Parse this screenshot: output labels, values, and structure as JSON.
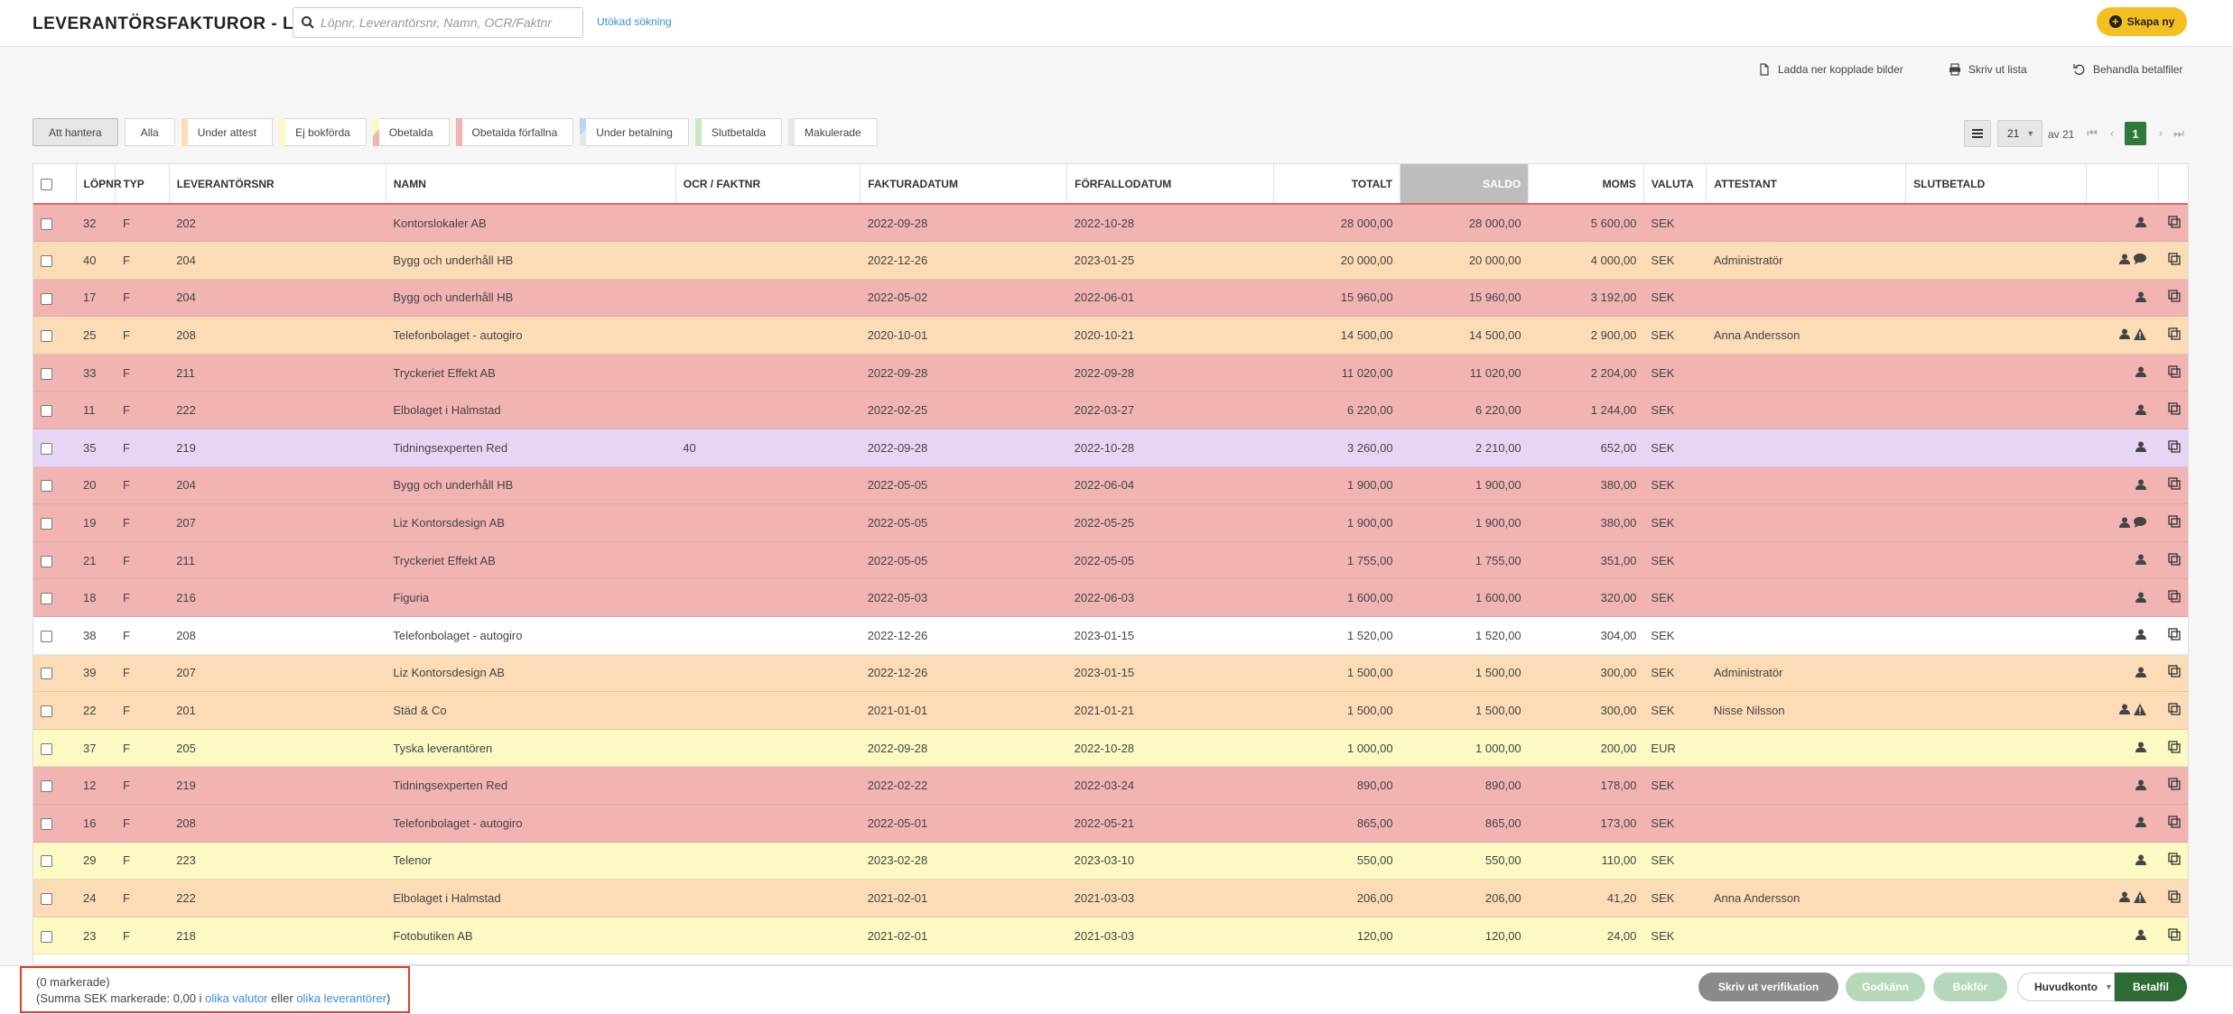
{
  "header": {
    "title": "LEVERANTÖRSFAKTUROR - LISTA",
    "search_placeholder": "Löpnr, Leverantörsnr, Namn, OCR/Faktnr",
    "advanced_search": "Utökad sökning",
    "create_label": "Skapa ny"
  },
  "actions": {
    "download": "Ladda ner kopplade bilder",
    "print": "Skriv ut lista",
    "process": "Behandla betalfiler"
  },
  "filters": [
    {
      "label": "Att hantera",
      "color": "",
      "active": true
    },
    {
      "label": "Alla",
      "color": ""
    },
    {
      "label": "Under attest",
      "color": "#fbdcb6"
    },
    {
      "label": "Ej bokförda",
      "color": "#fcf9c2"
    },
    {
      "label": "Obetalda",
      "color": "#f2b3b3"
    },
    {
      "label": "Obetalda förfallna",
      "color": "#f2b3b3"
    },
    {
      "label": "Under betalning",
      "color": "#b8d6f5"
    },
    {
      "label": "Slutbetalda",
      "color": "#cde8c3"
    },
    {
      "label": "Makulerade",
      "color": "#e6e6e6"
    }
  ],
  "pager": {
    "page_size": "21",
    "of_label": "av 21",
    "current_page": "1"
  },
  "columns": {
    "lopnr": "LÖPNR",
    "typ": "TYP",
    "levnr": "LEVERANTÖRSNR",
    "namn": "NAMN",
    "ocr": "OCR / FAKTNR",
    "fakturadatum": "FAKTURADATUM",
    "forfallodatum": "FÖRFALLODATUM",
    "totalt": "TOTALT",
    "saldo": "SALDO",
    "moms": "MOMS",
    "valuta": "VALUTA",
    "attestant": "ATTESTANT",
    "slutbetald": "SLUTBETALD"
  },
  "rows": [
    {
      "lopnr": "32",
      "typ": "F",
      "levnr": "202",
      "namn": "Kontorslokaler AB",
      "ocr": "",
      "fdatum": "2022-09-28",
      "ffdatum": "2022-10-28",
      "totalt": "28 000,00",
      "saldo": "28 000,00",
      "moms": "5 600,00",
      "valuta": "SEK",
      "attestant": "",
      "color": "red",
      "icons": [
        "user-icon"
      ]
    },
    {
      "lopnr": "40",
      "typ": "F",
      "levnr": "204",
      "namn": "Bygg och underhåll HB",
      "ocr": "",
      "fdatum": "2022-12-26",
      "ffdatum": "2023-01-25",
      "totalt": "20 000,00",
      "saldo": "20 000,00",
      "moms": "4 000,00",
      "valuta": "SEK",
      "attestant": "Administratör",
      "color": "orange",
      "icons": [
        "user-icon",
        "comment-icon"
      ]
    },
    {
      "lopnr": "17",
      "typ": "F",
      "levnr": "204",
      "namn": "Bygg och underhåll HB",
      "ocr": "",
      "fdatum": "2022-05-02",
      "ffdatum": "2022-06-01",
      "totalt": "15 960,00",
      "saldo": "15 960,00",
      "moms": "3 192,00",
      "valuta": "SEK",
      "attestant": "",
      "color": "red",
      "icons": [
        "user-icon"
      ]
    },
    {
      "lopnr": "25",
      "typ": "F",
      "levnr": "208",
      "namn": "Telefonbolaget - autogiro",
      "ocr": "",
      "fdatum": "2020-10-01",
      "ffdatum": "2020-10-21",
      "totalt": "14 500,00",
      "saldo": "14 500,00",
      "moms": "2 900,00",
      "valuta": "SEK",
      "attestant": "Anna Andersson",
      "color": "orange",
      "icons": [
        "user-icon",
        "warning-icon"
      ]
    },
    {
      "lopnr": "33",
      "typ": "F",
      "levnr": "211",
      "namn": "Tryckeriet Effekt AB",
      "ocr": "",
      "fdatum": "2022-09-28",
      "ffdatum": "2022-09-28",
      "totalt": "11 020,00",
      "saldo": "11 020,00",
      "moms": "2 204,00",
      "valuta": "SEK",
      "attestant": "",
      "color": "red",
      "icons": [
        "user-icon"
      ]
    },
    {
      "lopnr": "11",
      "typ": "F",
      "levnr": "222",
      "namn": "Elbolaget i Halmstad",
      "ocr": "",
      "fdatum": "2022-02-25",
      "ffdatum": "2022-03-27",
      "totalt": "6 220,00",
      "saldo": "6 220,00",
      "moms": "1 244,00",
      "valuta": "SEK",
      "attestant": "",
      "color": "red",
      "icons": [
        "user-icon"
      ]
    },
    {
      "lopnr": "35",
      "typ": "F",
      "levnr": "219",
      "namn": "Tidningsexperten Red",
      "ocr": "40",
      "fdatum": "2022-09-28",
      "ffdatum": "2022-10-28",
      "totalt": "3 260,00",
      "saldo": "2 210,00",
      "moms": "652,00",
      "valuta": "SEK",
      "attestant": "",
      "color": "lilac",
      "icons": [
        "user-icon"
      ]
    },
    {
      "lopnr": "20",
      "typ": "F",
      "levnr": "204",
      "namn": "Bygg och underhåll HB",
      "ocr": "",
      "fdatum": "2022-05-05",
      "ffdatum": "2022-06-04",
      "totalt": "1 900,00",
      "saldo": "1 900,00",
      "moms": "380,00",
      "valuta": "SEK",
      "attestant": "",
      "color": "red",
      "icons": [
        "user-icon"
      ]
    },
    {
      "lopnr": "19",
      "typ": "F",
      "levnr": "207",
      "namn": "Liz Kontorsdesign AB",
      "ocr": "",
      "fdatum": "2022-05-05",
      "ffdatum": "2022-05-25",
      "totalt": "1 900,00",
      "saldo": "1 900,00",
      "moms": "380,00",
      "valuta": "SEK",
      "attestant": "",
      "color": "red",
      "icons": [
        "user-icon",
        "comment-icon"
      ]
    },
    {
      "lopnr": "21",
      "typ": "F",
      "levnr": "211",
      "namn": "Tryckeriet Effekt AB",
      "ocr": "",
      "fdatum": "2022-05-05",
      "ffdatum": "2022-05-05",
      "totalt": "1 755,00",
      "saldo": "1 755,00",
      "moms": "351,00",
      "valuta": "SEK",
      "attestant": "",
      "color": "red",
      "icons": [
        "user-icon"
      ]
    },
    {
      "lopnr": "18",
      "typ": "F",
      "levnr": "216",
      "namn": "Figuria",
      "ocr": "",
      "fdatum": "2022-05-03",
      "ffdatum": "2022-06-03",
      "totalt": "1 600,00",
      "saldo": "1 600,00",
      "moms": "320,00",
      "valuta": "SEK",
      "attestant": "",
      "color": "red",
      "icons": [
        "user-icon"
      ]
    },
    {
      "lopnr": "38",
      "typ": "F",
      "levnr": "208",
      "namn": "Telefonbolaget - autogiro",
      "ocr": "",
      "fdatum": "2022-12-26",
      "ffdatum": "2023-01-15",
      "totalt": "1 520,00",
      "saldo": "1 520,00",
      "moms": "304,00",
      "valuta": "SEK",
      "attestant": "",
      "color": "white",
      "icons": [
        "user-icon"
      ]
    },
    {
      "lopnr": "39",
      "typ": "F",
      "levnr": "207",
      "namn": "Liz Kontorsdesign AB",
      "ocr": "",
      "fdatum": "2022-12-26",
      "ffdatum": "2023-01-15",
      "totalt": "1 500,00",
      "saldo": "1 500,00",
      "moms": "300,00",
      "valuta": "SEK",
      "attestant": "Administratör",
      "color": "orange",
      "icons": [
        "user-icon"
      ]
    },
    {
      "lopnr": "22",
      "typ": "F",
      "levnr": "201",
      "namn": "Städ & Co",
      "ocr": "",
      "fdatum": "2021-01-01",
      "ffdatum": "2021-01-21",
      "totalt": "1 500,00",
      "saldo": "1 500,00",
      "moms": "300,00",
      "valuta": "SEK",
      "attestant": "Nisse Nilsson",
      "color": "orange",
      "icons": [
        "user-icon",
        "warning-icon"
      ]
    },
    {
      "lopnr": "37",
      "typ": "F",
      "levnr": "205",
      "namn": "Tyska leverantören",
      "ocr": "",
      "fdatum": "2022-09-28",
      "ffdatum": "2022-10-28",
      "totalt": "1 000,00",
      "saldo": "1 000,00",
      "moms": "200,00",
      "valuta": "EUR",
      "attestant": "",
      "color": "yellow",
      "icons": [
        "user-icon"
      ]
    },
    {
      "lopnr": "12",
      "typ": "F",
      "levnr": "219",
      "namn": "Tidningsexperten Red",
      "ocr": "",
      "fdatum": "2022-02-22",
      "ffdatum": "2022-03-24",
      "totalt": "890,00",
      "saldo": "890,00",
      "moms": "178,00",
      "valuta": "SEK",
      "attestant": "",
      "color": "red",
      "icons": [
        "user-icon"
      ]
    },
    {
      "lopnr": "16",
      "typ": "F",
      "levnr": "208",
      "namn": "Telefonbolaget - autogiro",
      "ocr": "",
      "fdatum": "2022-05-01",
      "ffdatum": "2022-05-21",
      "totalt": "865,00",
      "saldo": "865,00",
      "moms": "173,00",
      "valuta": "SEK",
      "attestant": "",
      "color": "red",
      "icons": [
        "user-icon"
      ]
    },
    {
      "lopnr": "29",
      "typ": "F",
      "levnr": "223",
      "namn": "Telenor",
      "ocr": "",
      "fdatum": "2023-02-28",
      "ffdatum": "2023-03-10",
      "totalt": "550,00",
      "saldo": "550,00",
      "moms": "110,00",
      "valuta": "SEK",
      "attestant": "",
      "color": "yellow",
      "icons": [
        "user-icon"
      ]
    },
    {
      "lopnr": "24",
      "typ": "F",
      "levnr": "222",
      "namn": "Elbolaget i Halmstad",
      "ocr": "",
      "fdatum": "2021-02-01",
      "ffdatum": "2021-03-03",
      "totalt": "206,00",
      "saldo": "206,00",
      "moms": "41,20",
      "valuta": "SEK",
      "attestant": "Anna Andersson",
      "color": "orange",
      "icons": [
        "user-icon",
        "warning-icon"
      ]
    },
    {
      "lopnr": "23",
      "typ": "F",
      "levnr": "218",
      "namn": "Fotobutiken AB",
      "ocr": "",
      "fdatum": "2021-02-01",
      "ffdatum": "2021-03-03",
      "totalt": "120,00",
      "saldo": "120,00",
      "moms": "24,00",
      "valuta": "SEK",
      "attestant": "",
      "color": "yellow",
      "icons": [
        "user-icon"
      ]
    }
  ],
  "footer": {
    "marked": "(0 markerade)",
    "sum_prefix": "(Summa SEK markerade: 0,00 i ",
    "link_currencies": "olika valutor",
    "or": " eller ",
    "link_suppliers": "olika leverantörer",
    "sum_suffix": ")",
    "print_verification": "Skriv ut verifikation",
    "approve": "Godkänn",
    "book": "Bokför",
    "account": "Huvudkonto",
    "payment_file": "Betalfil"
  }
}
